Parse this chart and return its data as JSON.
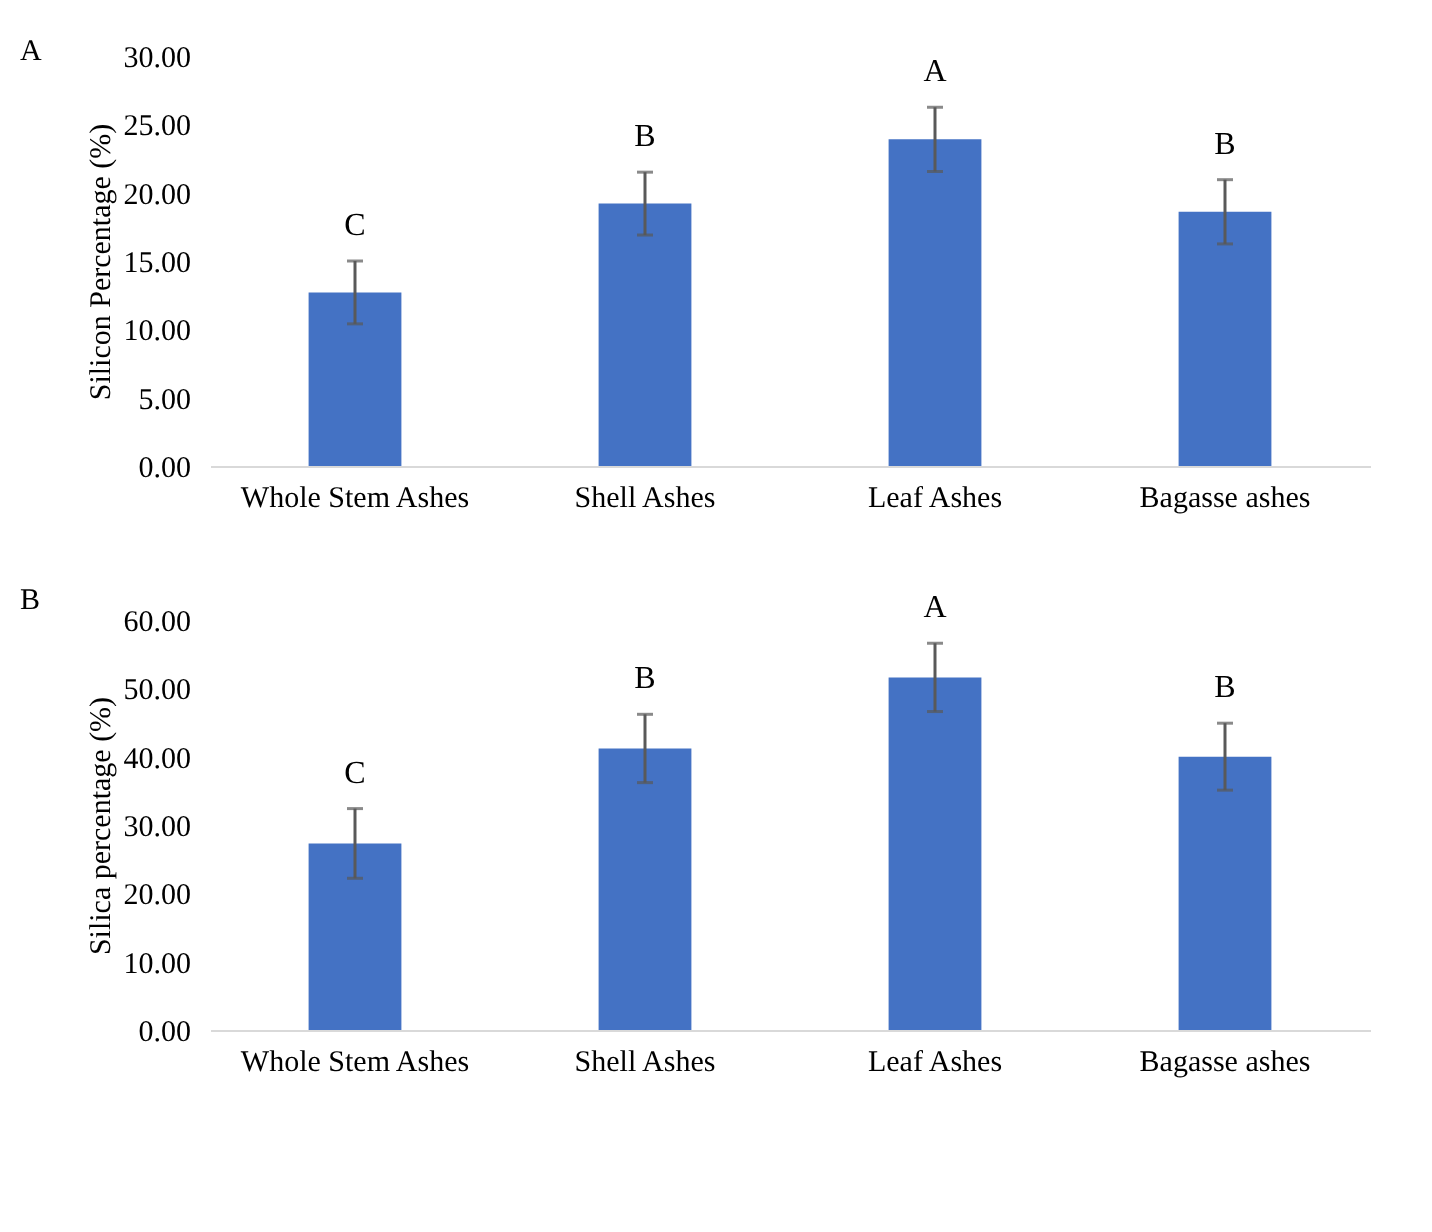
{
  "chart_data": [
    {
      "type": "bar",
      "title": "A",
      "ylabel": "Silicon Percentage (%)",
      "categories": [
        "Whole Stem Ashes",
        "Shell Ashes",
        "Leaf Ashes",
        "Bagasse ashes"
      ],
      "values": [
        12.7,
        19.2,
        23.9,
        18.6
      ],
      "errors": [
        2.3,
        2.3,
        2.35,
        2.35
      ],
      "color": "#4472c4",
      "ylim": [
        0,
        30
      ],
      "yticks": [
        {
          "value": 0,
          "label": "0.00"
        },
        {
          "value": 5,
          "label": "5.00"
        },
        {
          "value": 10,
          "label": "10.00"
        },
        {
          "value": 15,
          "label": "15.00"
        },
        {
          "value": 20,
          "label": "20.00"
        },
        {
          "value": 25,
          "label": "25.00"
        },
        {
          "value": 30,
          "label": "30.00"
        }
      ],
      "grid": false,
      "annotations": [
        "C",
        "B",
        "A",
        "B"
      ]
    },
    {
      "type": "bar",
      "title": "B",
      "ylabel": "Silica percentage (%)",
      "categories": [
        "Whole Stem Ashes",
        "Shell Ashes",
        "Leaf Ashes",
        "Bagasse ashes"
      ],
      "values": [
        27.3,
        41.2,
        51.6,
        40.0
      ],
      "errors": [
        5.1,
        5.0,
        5.0,
        4.9
      ],
      "color": "#4472c4",
      "ylim": [
        0,
        60
      ],
      "yticks": [
        {
          "value": 0,
          "label": "0.00"
        },
        {
          "value": 10,
          "label": "10.00"
        },
        {
          "value": 20,
          "label": "20.00"
        },
        {
          "value": 30,
          "label": "30.00"
        },
        {
          "value": 40,
          "label": "40.00"
        },
        {
          "value": 50,
          "label": "50.00"
        },
        {
          "value": 60,
          "label": "60.00"
        }
      ],
      "grid": false,
      "annotations": [
        "C",
        "B",
        "A",
        "B"
      ]
    }
  ]
}
